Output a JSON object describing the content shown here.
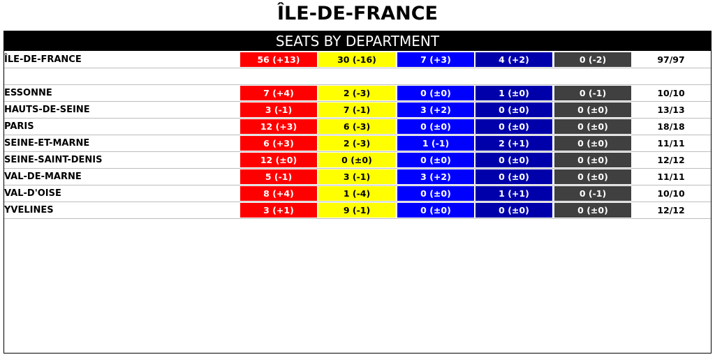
{
  "title": "ÎLE-DE-FRANCE",
  "header": "SEATS BY DEPARTMENT",
  "colors": {
    "party1": "#ff0000",
    "party2": "#ffff00",
    "party3": "#0000ff",
    "party4": "#0000aa",
    "party5": "#404040"
  },
  "chart_data": {
    "type": "table",
    "title": "ÎLE-DE-FRANCE",
    "subtitle": "SEATS BY DEPARTMENT",
    "summary": {
      "name": "ÎLE-DE-FRANCE",
      "cells": [
        "56 (+13)",
        "30 (-16)",
        "7 (+3)",
        "4 (+2)",
        "0 (-2)"
      ],
      "total": "97/97"
    },
    "rows": [
      {
        "name": "ESSONNE",
        "cells": [
          "7 (+4)",
          "2 (-3)",
          "0 (±0)",
          "1 (±0)",
          "0 (-1)"
        ],
        "total": "10/10"
      },
      {
        "name": "HAUTS-DE-SEINE",
        "cells": [
          "3 (-1)",
          "7 (-1)",
          "3 (+2)",
          "0 (±0)",
          "0 (±0)"
        ],
        "total": "13/13"
      },
      {
        "name": "PARIS",
        "cells": [
          "12 (+3)",
          "6 (-3)",
          "0 (±0)",
          "0 (±0)",
          "0 (±0)"
        ],
        "total": "18/18"
      },
      {
        "name": "SEINE-ET-MARNE",
        "cells": [
          "6 (+3)",
          "2 (-3)",
          "1 (-1)",
          "2 (+1)",
          "0 (±0)"
        ],
        "total": "11/11"
      },
      {
        "name": "SEINE-SAINT-DENIS",
        "cells": [
          "12 (±0)",
          "0 (±0)",
          "0 (±0)",
          "0 (±0)",
          "0 (±0)"
        ],
        "total": "12/12"
      },
      {
        "name": "VAL-DE-MARNE",
        "cells": [
          "5 (-1)",
          "3 (-1)",
          "3 (+2)",
          "0 (±0)",
          "0 (±0)"
        ],
        "total": "11/11"
      },
      {
        "name": "VAL-D'OISE",
        "cells": [
          "8 (+4)",
          "1 (-4)",
          "0 (±0)",
          "1 (+1)",
          "0 (-1)"
        ],
        "total": "10/10"
      },
      {
        "name": "YVELINES",
        "cells": [
          "3 (+1)",
          "9 (-1)",
          "0 (±0)",
          "0 (±0)",
          "0 (±0)"
        ],
        "total": "12/12"
      }
    ]
  }
}
